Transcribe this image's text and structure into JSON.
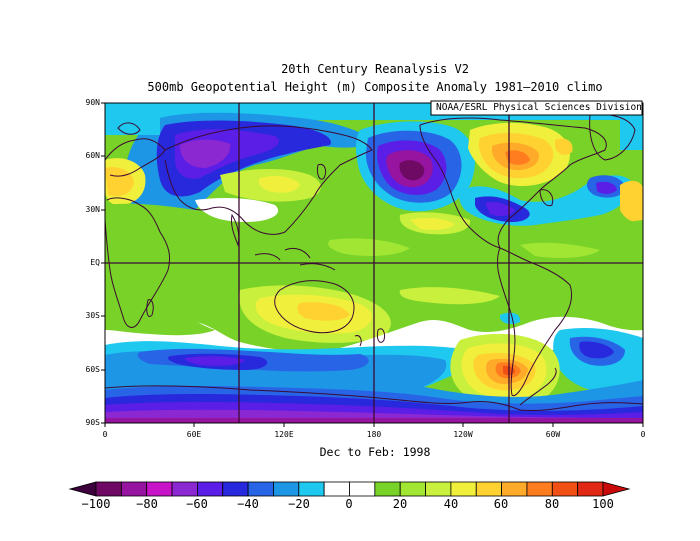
{
  "titles": {
    "line1": "20th Century Reanalysis V2",
    "line2": "500mb Geopotential Height (m) Composite Anomaly 1981–2010 climo",
    "credit": "NOAA/ESRL Physical Sciences Division",
    "period": "Dec to Feb: 1998"
  },
  "lat_ticks": [
    "90N",
    "60N",
    "30N",
    "EQ",
    "30S",
    "60S",
    "90S"
  ],
  "lon_ticks": [
    "0",
    "60E",
    "120E",
    "180",
    "120W",
    "60W",
    "0"
  ],
  "colorbar": {
    "labels": [
      "−100",
      "−80",
      "−60",
      "−40",
      "−20",
      "0",
      "20",
      "40",
      "60",
      "80",
      "100"
    ],
    "colors": [
      "#3c003c",
      "#6e0a64",
      "#9614a0",
      "#c814c8",
      "#8c28d2",
      "#5a1ee6",
      "#2828dc",
      "#2864e6",
      "#1e96e6",
      "#1ec8ee",
      "#ffffff",
      "#ffffff",
      "#78d228",
      "#a0e632",
      "#c8f03c",
      "#f0f03c",
      "#ffd232",
      "#ffaa28",
      "#ff7d1e",
      "#f05014",
      "#e12814",
      "#c80a0a"
    ]
  },
  "chart_data": {
    "type": "heatmap",
    "title": "500mb Geopotential Height (m) Composite Anomaly 1981–2010 climo",
    "subtitle": "20th Century Reanalysis V2",
    "xlabel": "Dec to Feb: 1998",
    "units": "m",
    "x_range": [
      "0",
      "0"
    ],
    "y_range": [
      "90S",
      "90N"
    ],
    "color_range": [
      -100,
      100
    ],
    "features": [
      {
        "name": "North Pacific / Gulf of Alaska low",
        "value": -95
      },
      {
        "name": "Northeastern Canada high",
        "value": 70
      },
      {
        "name": "Southeast Pacific high near 60S 90W",
        "value": 75
      },
      {
        "name": "Eurasia negative belt 45N–70N",
        "value": -55
      },
      {
        "name": "Southern Ocean negative band 45S–55S",
        "value": -45
      },
      {
        "name": "Antarctic strong negative",
        "value": -80
      },
      {
        "name": "Subtropical Southwest Pacific positive",
        "value": 35
      }
    ]
  }
}
